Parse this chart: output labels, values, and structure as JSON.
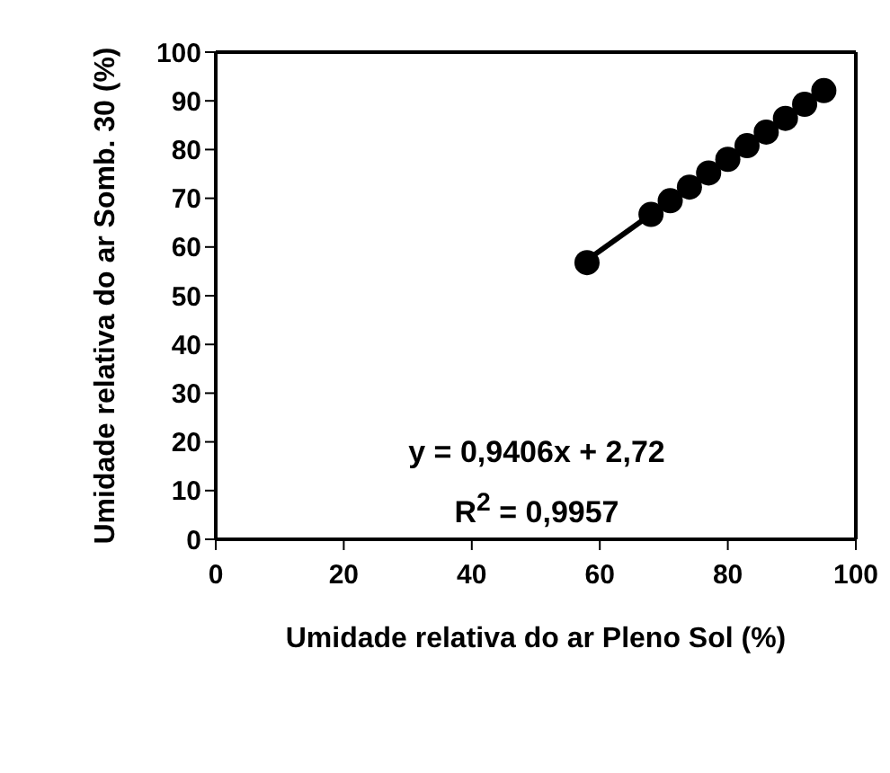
{
  "chart_data": {
    "type": "scatter",
    "xlabel": "Umidade relativa do ar Pleno Sol (%)",
    "ylabel": "Umidade relativa do ar Somb. 30 (%)",
    "xlim": [
      0,
      100
    ],
    "xticks": [
      0,
      20,
      40,
      60,
      80,
      100
    ],
    "ylim": [
      0,
      100
    ],
    "yticks": [
      0,
      10,
      20,
      30,
      40,
      50,
      60,
      70,
      80,
      90,
      100
    ],
    "marker": "circle",
    "annotations": [
      "y = 0,9406x + 2,72",
      "R$^{2}$ = 0,9957"
    ],
    "series": [
      {
        "type": "line",
        "color": "#000000",
        "marker": "none",
        "line_style": "solid",
        "x": [
          58,
          95
        ],
        "values": [
          57.3,
          92.1
        ]
      },
      {
        "type": "scatter",
        "color": "#000000",
        "x": [
          58,
          68,
          71,
          74,
          77,
          80,
          83,
          86,
          89,
          92,
          95
        ],
        "values": [
          56.8,
          66.7,
          69.5,
          72.3,
          75.2,
          78.0,
          80.8,
          83.6,
          86.4,
          89.3,
          92.1
        ]
      }
    ]
  }
}
